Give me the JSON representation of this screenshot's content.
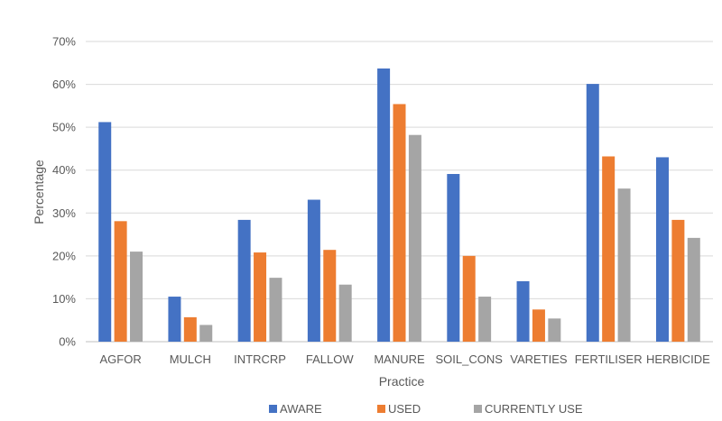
{
  "chart_data": {
    "type": "bar",
    "xlabel": "Practice",
    "ylabel": "Percentage",
    "categories": [
      "AGFOR",
      "MULCH",
      "INTRCRP",
      "FALLOW",
      "MANURE",
      "SOIL_CONS",
      "VARETIES",
      "FERTILISER",
      "HERBICIDE"
    ],
    "series": [
      {
        "name": "AWARE",
        "color": "#4472c4",
        "values": [
          51.2,
          10.5,
          28.4,
          33.1,
          63.7,
          39.1,
          14.1,
          60.1,
          43.0
        ]
      },
      {
        "name": "USED",
        "color": "#ed7d31",
        "values": [
          28.1,
          5.7,
          20.8,
          21.4,
          55.4,
          20.0,
          7.5,
          43.2,
          28.4
        ]
      },
      {
        "name": "CURRENTLY USE",
        "color": "#a5a5a5",
        "values": [
          21.0,
          3.9,
          14.9,
          13.3,
          48.2,
          10.5,
          5.4,
          35.7,
          24.2
        ]
      }
    ],
    "ylim": [
      0,
      70
    ],
    "yticks": [
      "0%",
      "10%",
      "20%",
      "30%",
      "40%",
      "50%",
      "60%",
      "70%"
    ],
    "grid": true,
    "legend_position": "bottom"
  }
}
